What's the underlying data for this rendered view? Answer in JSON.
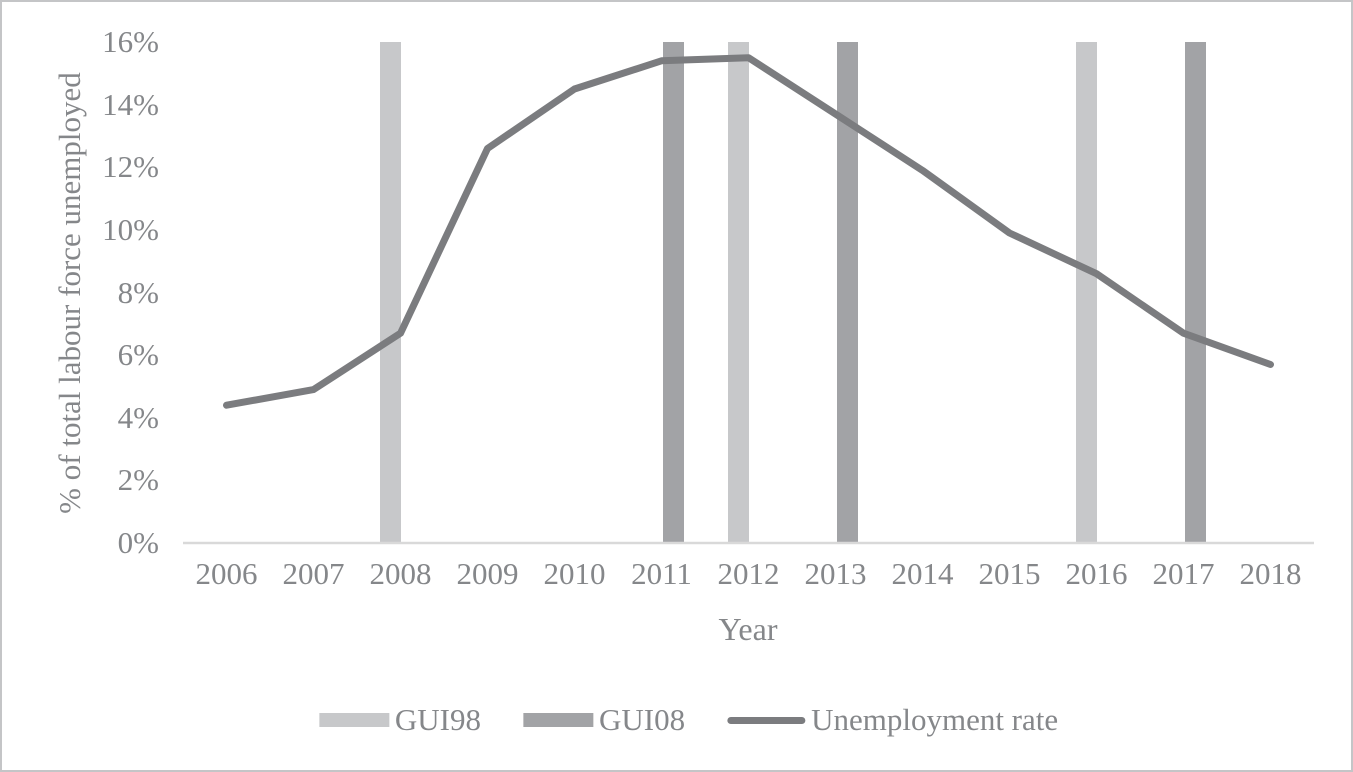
{
  "figure": {
    "background": "#ffffff",
    "border_color": "#c4c5c7",
    "text_color": "#85878a",
    "axis_line_color": "#d9d9d9"
  },
  "chart_data": {
    "type": "combo-bar-line",
    "title": "",
    "xlabel": "Year",
    "ylabel": "% of total labour force unemployed",
    "categories": [
      "2006",
      "2007",
      "2008",
      "2009",
      "2010",
      "2011",
      "2012",
      "2013",
      "2014",
      "2015",
      "2016",
      "2017",
      "2018"
    ],
    "y_axis": {
      "min": 0,
      "max": 16,
      "step": 2,
      "tick_labels": [
        "0%",
        "2%",
        "4%",
        "6%",
        "8%",
        "10%",
        "12%",
        "14%",
        "16%"
      ],
      "grid": false
    },
    "series": [
      {
        "name": "GUI98",
        "type": "bar",
        "color": "#c7c8ca",
        "years": [
          "2008",
          "2012",
          "2016"
        ],
        "bar_top_pct": 16
      },
      {
        "name": "GUI08",
        "type": "bar",
        "color": "#a2a3a6",
        "years": [
          "2011",
          "2013",
          "2017"
        ],
        "bar_top_pct": 16
      },
      {
        "name": "Unemployment rate",
        "type": "line",
        "color": "#7b7c7f",
        "values": [
          4.4,
          4.9,
          6.7,
          12.6,
          14.5,
          15.4,
          15.5,
          13.7,
          11.9,
          9.9,
          8.6,
          6.7,
          5.7
        ]
      }
    ],
    "legend": {
      "position": "bottom",
      "entries": [
        "GUI98",
        "GUI08",
        "Unemployment rate"
      ]
    }
  }
}
